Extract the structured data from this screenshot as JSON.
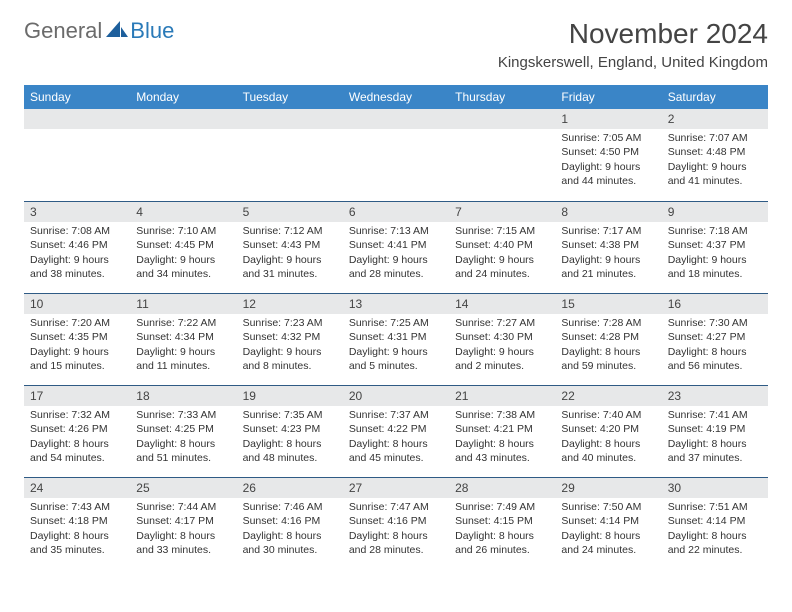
{
  "brand": {
    "general": "General",
    "blue": "Blue"
  },
  "title": "November 2024",
  "location": "Kingskerswell, England, United Kingdom",
  "dayHeaders": [
    "Sunday",
    "Monday",
    "Tuesday",
    "Wednesday",
    "Thursday",
    "Friday",
    "Saturday"
  ],
  "colors": {
    "header_bg": "#3a85c7",
    "header_text": "#ffffff",
    "daynum_bg": "#e7e8e9",
    "divider": "#2f5b85",
    "logo_gray": "#6b6b6b",
    "logo_blue": "#2a7ab8"
  },
  "weeks": [
    [
      null,
      null,
      null,
      null,
      null,
      {
        "n": "1",
        "sunrise": "7:05 AM",
        "sunset": "4:50 PM",
        "daylight": "9 hours and 44 minutes."
      },
      {
        "n": "2",
        "sunrise": "7:07 AM",
        "sunset": "4:48 PM",
        "daylight": "9 hours and 41 minutes."
      }
    ],
    [
      {
        "n": "3",
        "sunrise": "7:08 AM",
        "sunset": "4:46 PM",
        "daylight": "9 hours and 38 minutes."
      },
      {
        "n": "4",
        "sunrise": "7:10 AM",
        "sunset": "4:45 PM",
        "daylight": "9 hours and 34 minutes."
      },
      {
        "n": "5",
        "sunrise": "7:12 AM",
        "sunset": "4:43 PM",
        "daylight": "9 hours and 31 minutes."
      },
      {
        "n": "6",
        "sunrise": "7:13 AM",
        "sunset": "4:41 PM",
        "daylight": "9 hours and 28 minutes."
      },
      {
        "n": "7",
        "sunrise": "7:15 AM",
        "sunset": "4:40 PM",
        "daylight": "9 hours and 24 minutes."
      },
      {
        "n": "8",
        "sunrise": "7:17 AM",
        "sunset": "4:38 PM",
        "daylight": "9 hours and 21 minutes."
      },
      {
        "n": "9",
        "sunrise": "7:18 AM",
        "sunset": "4:37 PM",
        "daylight": "9 hours and 18 minutes."
      }
    ],
    [
      {
        "n": "10",
        "sunrise": "7:20 AM",
        "sunset": "4:35 PM",
        "daylight": "9 hours and 15 minutes."
      },
      {
        "n": "11",
        "sunrise": "7:22 AM",
        "sunset": "4:34 PM",
        "daylight": "9 hours and 11 minutes."
      },
      {
        "n": "12",
        "sunrise": "7:23 AM",
        "sunset": "4:32 PM",
        "daylight": "9 hours and 8 minutes."
      },
      {
        "n": "13",
        "sunrise": "7:25 AM",
        "sunset": "4:31 PM",
        "daylight": "9 hours and 5 minutes."
      },
      {
        "n": "14",
        "sunrise": "7:27 AM",
        "sunset": "4:30 PM",
        "daylight": "9 hours and 2 minutes."
      },
      {
        "n": "15",
        "sunrise": "7:28 AM",
        "sunset": "4:28 PM",
        "daylight": "8 hours and 59 minutes."
      },
      {
        "n": "16",
        "sunrise": "7:30 AM",
        "sunset": "4:27 PM",
        "daylight": "8 hours and 56 minutes."
      }
    ],
    [
      {
        "n": "17",
        "sunrise": "7:32 AM",
        "sunset": "4:26 PM",
        "daylight": "8 hours and 54 minutes."
      },
      {
        "n": "18",
        "sunrise": "7:33 AM",
        "sunset": "4:25 PM",
        "daylight": "8 hours and 51 minutes."
      },
      {
        "n": "19",
        "sunrise": "7:35 AM",
        "sunset": "4:23 PM",
        "daylight": "8 hours and 48 minutes."
      },
      {
        "n": "20",
        "sunrise": "7:37 AM",
        "sunset": "4:22 PM",
        "daylight": "8 hours and 45 minutes."
      },
      {
        "n": "21",
        "sunrise": "7:38 AM",
        "sunset": "4:21 PM",
        "daylight": "8 hours and 43 minutes."
      },
      {
        "n": "22",
        "sunrise": "7:40 AM",
        "sunset": "4:20 PM",
        "daylight": "8 hours and 40 minutes."
      },
      {
        "n": "23",
        "sunrise": "7:41 AM",
        "sunset": "4:19 PM",
        "daylight": "8 hours and 37 minutes."
      }
    ],
    [
      {
        "n": "24",
        "sunrise": "7:43 AM",
        "sunset": "4:18 PM",
        "daylight": "8 hours and 35 minutes."
      },
      {
        "n": "25",
        "sunrise": "7:44 AM",
        "sunset": "4:17 PM",
        "daylight": "8 hours and 33 minutes."
      },
      {
        "n": "26",
        "sunrise": "7:46 AM",
        "sunset": "4:16 PM",
        "daylight": "8 hours and 30 minutes."
      },
      {
        "n": "27",
        "sunrise": "7:47 AM",
        "sunset": "4:16 PM",
        "daylight": "8 hours and 28 minutes."
      },
      {
        "n": "28",
        "sunrise": "7:49 AM",
        "sunset": "4:15 PM",
        "daylight": "8 hours and 26 minutes."
      },
      {
        "n": "29",
        "sunrise": "7:50 AM",
        "sunset": "4:14 PM",
        "daylight": "8 hours and 24 minutes."
      },
      {
        "n": "30",
        "sunrise": "7:51 AM",
        "sunset": "4:14 PM",
        "daylight": "8 hours and 22 minutes."
      }
    ]
  ],
  "labels": {
    "sunrise": "Sunrise: ",
    "sunset": "Sunset: ",
    "daylight": "Daylight: "
  }
}
